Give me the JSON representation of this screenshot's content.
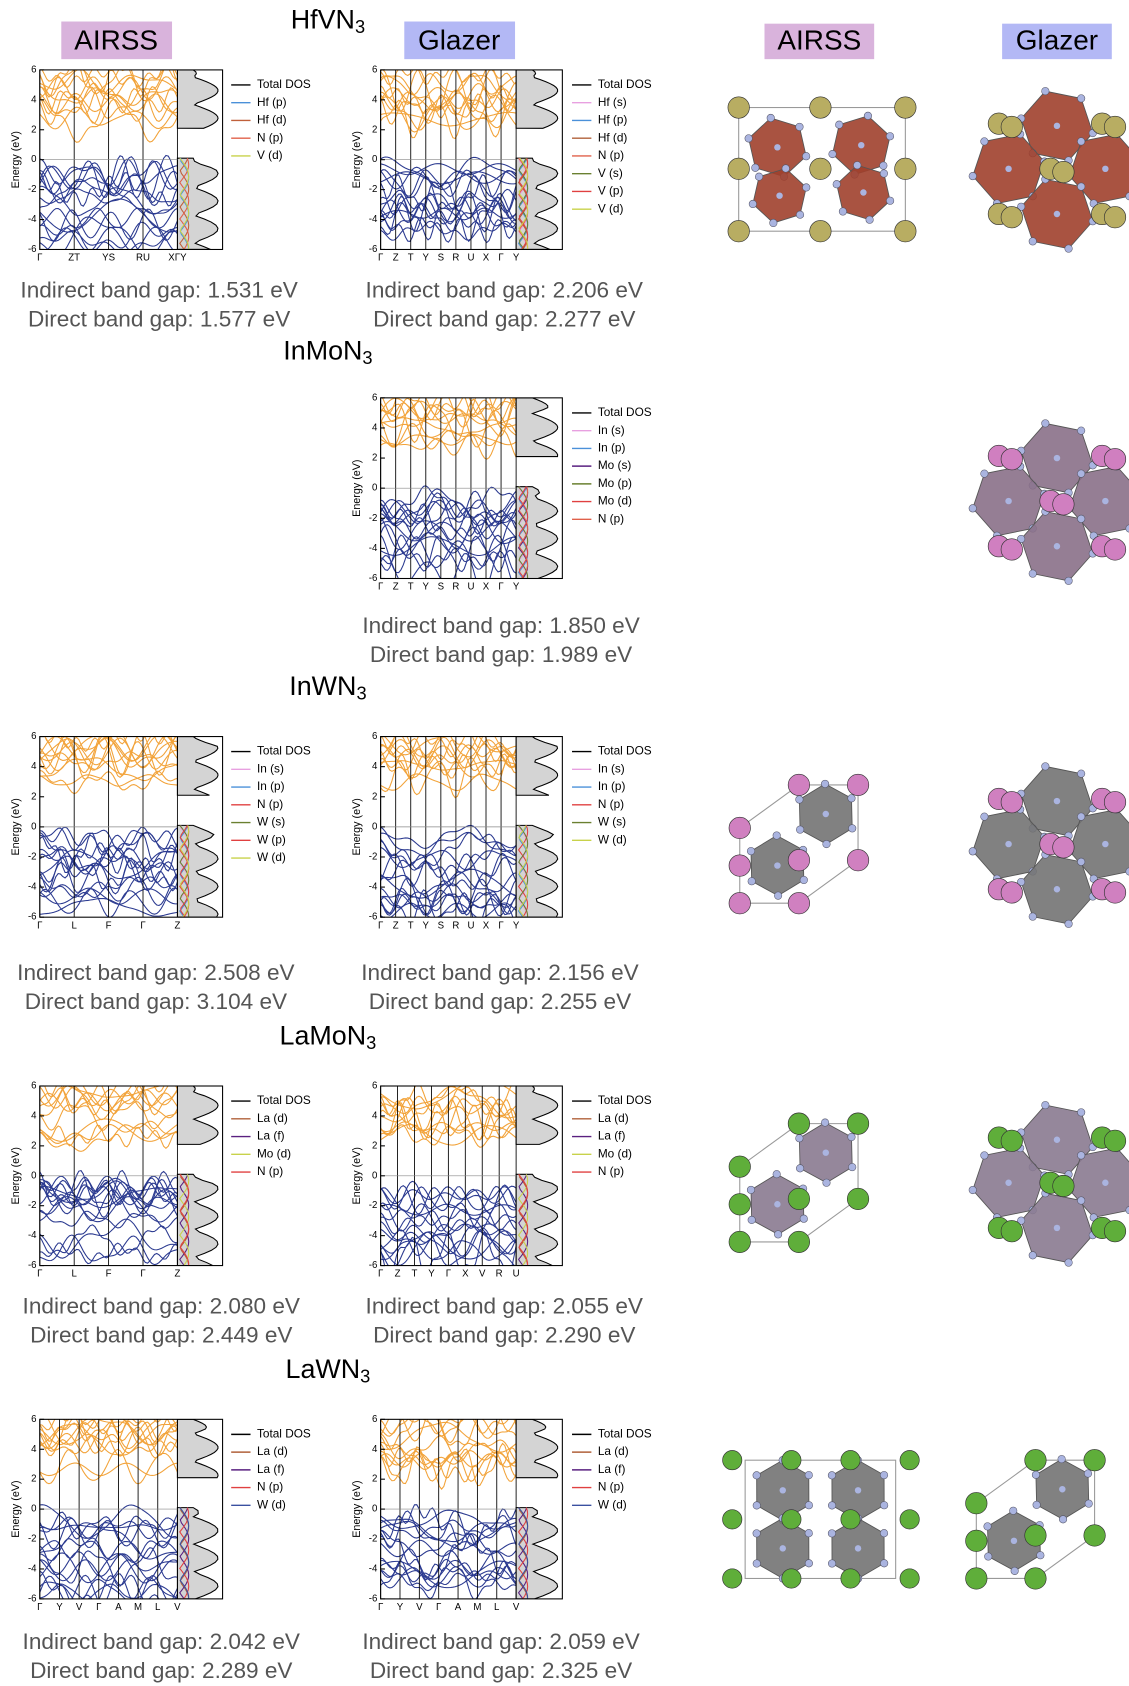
{
  "column_headers": [
    "AIRSS",
    "Glazer"
  ],
  "y_label": "Energy (eV)",
  "ylim": [
    -6,
    6
  ],
  "yticks": [
    -6,
    -4,
    -2,
    0,
    2,
    4,
    6
  ],
  "compounds": [
    {
      "formula": [
        "HfVN",
        "3"
      ],
      "panels": {
        "airss": {
          "kpoints": [
            "Γ",
            "ZT",
            "YS",
            "RU",
            "XΓY"
          ],
          "legend": [
            {
              "name": "Total DOS",
              "color": "#000000"
            },
            {
              "name": "Hf (p)",
              "color": "#4a90d9"
            },
            {
              "name": "Hf (d)",
              "color": "#c0603a"
            },
            {
              "name": "N (p)",
              "color": "#e0604a"
            },
            {
              "name": "V (d)",
              "color": "#c8d24a"
            }
          ],
          "gaps": [
            "Indirect band gap: 1.531 eV",
            "Direct band gap: 1.577 eV"
          ]
        },
        "glazer": {
          "kpoints": [
            "Γ",
            "Z",
            "T",
            "Y",
            "S",
            "R",
            "U",
            "X",
            "Γ",
            "Y"
          ],
          "legend": [
            {
              "name": "Total DOS",
              "color": "#000000"
            },
            {
              "name": "Hf (s)",
              "color": "#e8a0e0"
            },
            {
              "name": "Hf (p)",
              "color": "#4a90d9"
            },
            {
              "name": "Hf (d)",
              "color": "#b0603a"
            },
            {
              "name": "N (p)",
              "color": "#e0604a"
            },
            {
              "name": "V (s)",
              "color": "#6a8030"
            },
            {
              "name": "V (p)",
              "color": "#e04040"
            },
            {
              "name": "V (d)",
              "color": "#c8d24a"
            }
          ],
          "gaps": [
            "Indirect band gap: 2.206 eV",
            "Direct band gap: 2.277 eV"
          ]
        }
      }
    },
    {
      "formula": [
        "InMoN",
        "3"
      ],
      "panels": {
        "glazer": {
          "kpoints": [
            "Γ",
            "Z",
            "T",
            "Y",
            "S",
            "R",
            "U",
            "X",
            "Γ",
            "Y"
          ],
          "legend": [
            {
              "name": "Total DOS",
              "color": "#000000"
            },
            {
              "name": "In (s)",
              "color": "#e8a0e0"
            },
            {
              "name": "In (p)",
              "color": "#4a90d9"
            },
            {
              "name": "Mo (s)",
              "color": "#5a2080"
            },
            {
              "name": "Mo (p)",
              "color": "#6a8030"
            },
            {
              "name": "Mo (d)",
              "color": "#e04040"
            },
            {
              "name": "N (p)",
              "color": "#e0604a"
            }
          ],
          "gaps": [
            "Indirect band gap: 1.850 eV",
            "Direct band gap: 1.989 eV"
          ]
        }
      }
    },
    {
      "formula": [
        "InWN",
        "3"
      ],
      "panels": {
        "airss": {
          "kpoints": [
            "Γ",
            "L",
            "F",
            "Γ",
            "Z"
          ],
          "legend": [
            {
              "name": "Total DOS",
              "color": "#000000"
            },
            {
              "name": "In (s)",
              "color": "#e8a0e0"
            },
            {
              "name": "In (p)",
              "color": "#4a90d9"
            },
            {
              "name": "N (p)",
              "color": "#e04040"
            },
            {
              "name": "W (s)",
              "color": "#6a8030"
            },
            {
              "name": "W (p)",
              "color": "#e04040"
            },
            {
              "name": "W (d)",
              "color": "#c8d24a"
            }
          ],
          "gaps": [
            "Indirect band gap: 2.508 eV",
            "Direct band gap: 3.104 eV"
          ]
        },
        "glazer": {
          "kpoints": [
            "Γ",
            "Z",
            "T",
            "Y",
            "S",
            "R",
            "U",
            "X",
            "Γ",
            "Y"
          ],
          "legend": [
            {
              "name": "Total DOS",
              "color": "#000000"
            },
            {
              "name": "In (s)",
              "color": "#e8a0e0"
            },
            {
              "name": "In (p)",
              "color": "#4a90d9"
            },
            {
              "name": "N (p)",
              "color": "#e04040"
            },
            {
              "name": "W (s)",
              "color": "#6a8030"
            },
            {
              "name": "W (d)",
              "color": "#c8d24a"
            }
          ],
          "gaps": [
            "Indirect band gap: 2.156 eV",
            "Direct band gap: 2.255 eV"
          ]
        }
      }
    },
    {
      "formula": [
        "LaMoN",
        "3"
      ],
      "panels": {
        "airss": {
          "kpoints": [
            "Γ",
            "L",
            "F",
            "Γ",
            "Z"
          ],
          "legend": [
            {
              "name": "Total DOS",
              "color": "#000000"
            },
            {
              "name": "La (d)",
              "color": "#b0603a"
            },
            {
              "name": "La (f)",
              "color": "#5a2080"
            },
            {
              "name": "Mo (d)",
              "color": "#c8d24a"
            },
            {
              "name": "N (p)",
              "color": "#e04040"
            }
          ],
          "gaps": [
            "Indirect band gap: 2.080 eV",
            "Direct band gap: 2.449 eV"
          ]
        },
        "glazer": {
          "kpoints": [
            "Γ",
            "Z",
            "T",
            "Y",
            "Γ",
            "X",
            "V",
            "R",
            "U"
          ],
          "legend": [
            {
              "name": "Total DOS",
              "color": "#000000"
            },
            {
              "name": "La (d)",
              "color": "#b0603a"
            },
            {
              "name": "La (f)",
              "color": "#5a2080"
            },
            {
              "name": "Mo (d)",
              "color": "#c8d24a"
            },
            {
              "name": "N (p)",
              "color": "#e04040"
            }
          ],
          "gaps": [
            "Indirect band gap: 2.055 eV",
            "Direct band gap: 2.290 eV"
          ]
        }
      }
    },
    {
      "formula": [
        "LaWN",
        "3"
      ],
      "panels": {
        "airss": {
          "kpoints": [
            "Γ",
            "Y",
            "V",
            "Γ",
            "A",
            "M",
            "L",
            "V"
          ],
          "legend": [
            {
              "name": "Total DOS",
              "color": "#000000"
            },
            {
              "name": "La (d)",
              "color": "#b0603a"
            },
            {
              "name": "La (f)",
              "color": "#5a2080"
            },
            {
              "name": "N (p)",
              "color": "#e04040"
            },
            {
              "name": "W (d)",
              "color": "#3a50a0"
            }
          ],
          "gaps": [
            "Indirect band gap: 2.042 eV",
            "Direct band gap: 2.289 eV"
          ]
        },
        "glazer": {
          "kpoints": [
            "Γ",
            "Y",
            "V",
            "Γ",
            "A",
            "M",
            "L",
            "V"
          ],
          "legend": [
            {
              "name": "Total DOS",
              "color": "#000000"
            },
            {
              "name": "La (d)",
              "color": "#b0603a"
            },
            {
              "name": "La (f)",
              "color": "#5a2080"
            },
            {
              "name": "N (p)",
              "color": "#e04040"
            },
            {
              "name": "W (d)",
              "color": "#3a50a0"
            }
          ],
          "gaps": [
            "Indirect band gap: 2.059 eV",
            "Direct band gap: 2.325 eV"
          ]
        }
      }
    }
  ]
}
